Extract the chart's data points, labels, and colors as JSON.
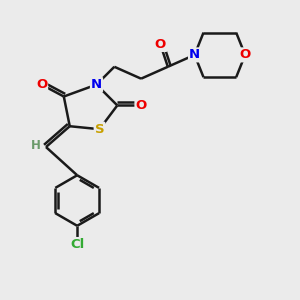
{
  "bg_color": "#ebebeb",
  "bond_color": "#1a1a1a",
  "bond_width": 1.8,
  "label_fontsize": 9.5,
  "figsize": [
    3.0,
    3.0
  ],
  "dpi": 100,
  "colors": {
    "S": "#c8a000",
    "N": "#0000ee",
    "O": "#ee0000",
    "Cl": "#33aa33",
    "H": "#6a9a6a",
    "C": "#1a1a1a"
  }
}
